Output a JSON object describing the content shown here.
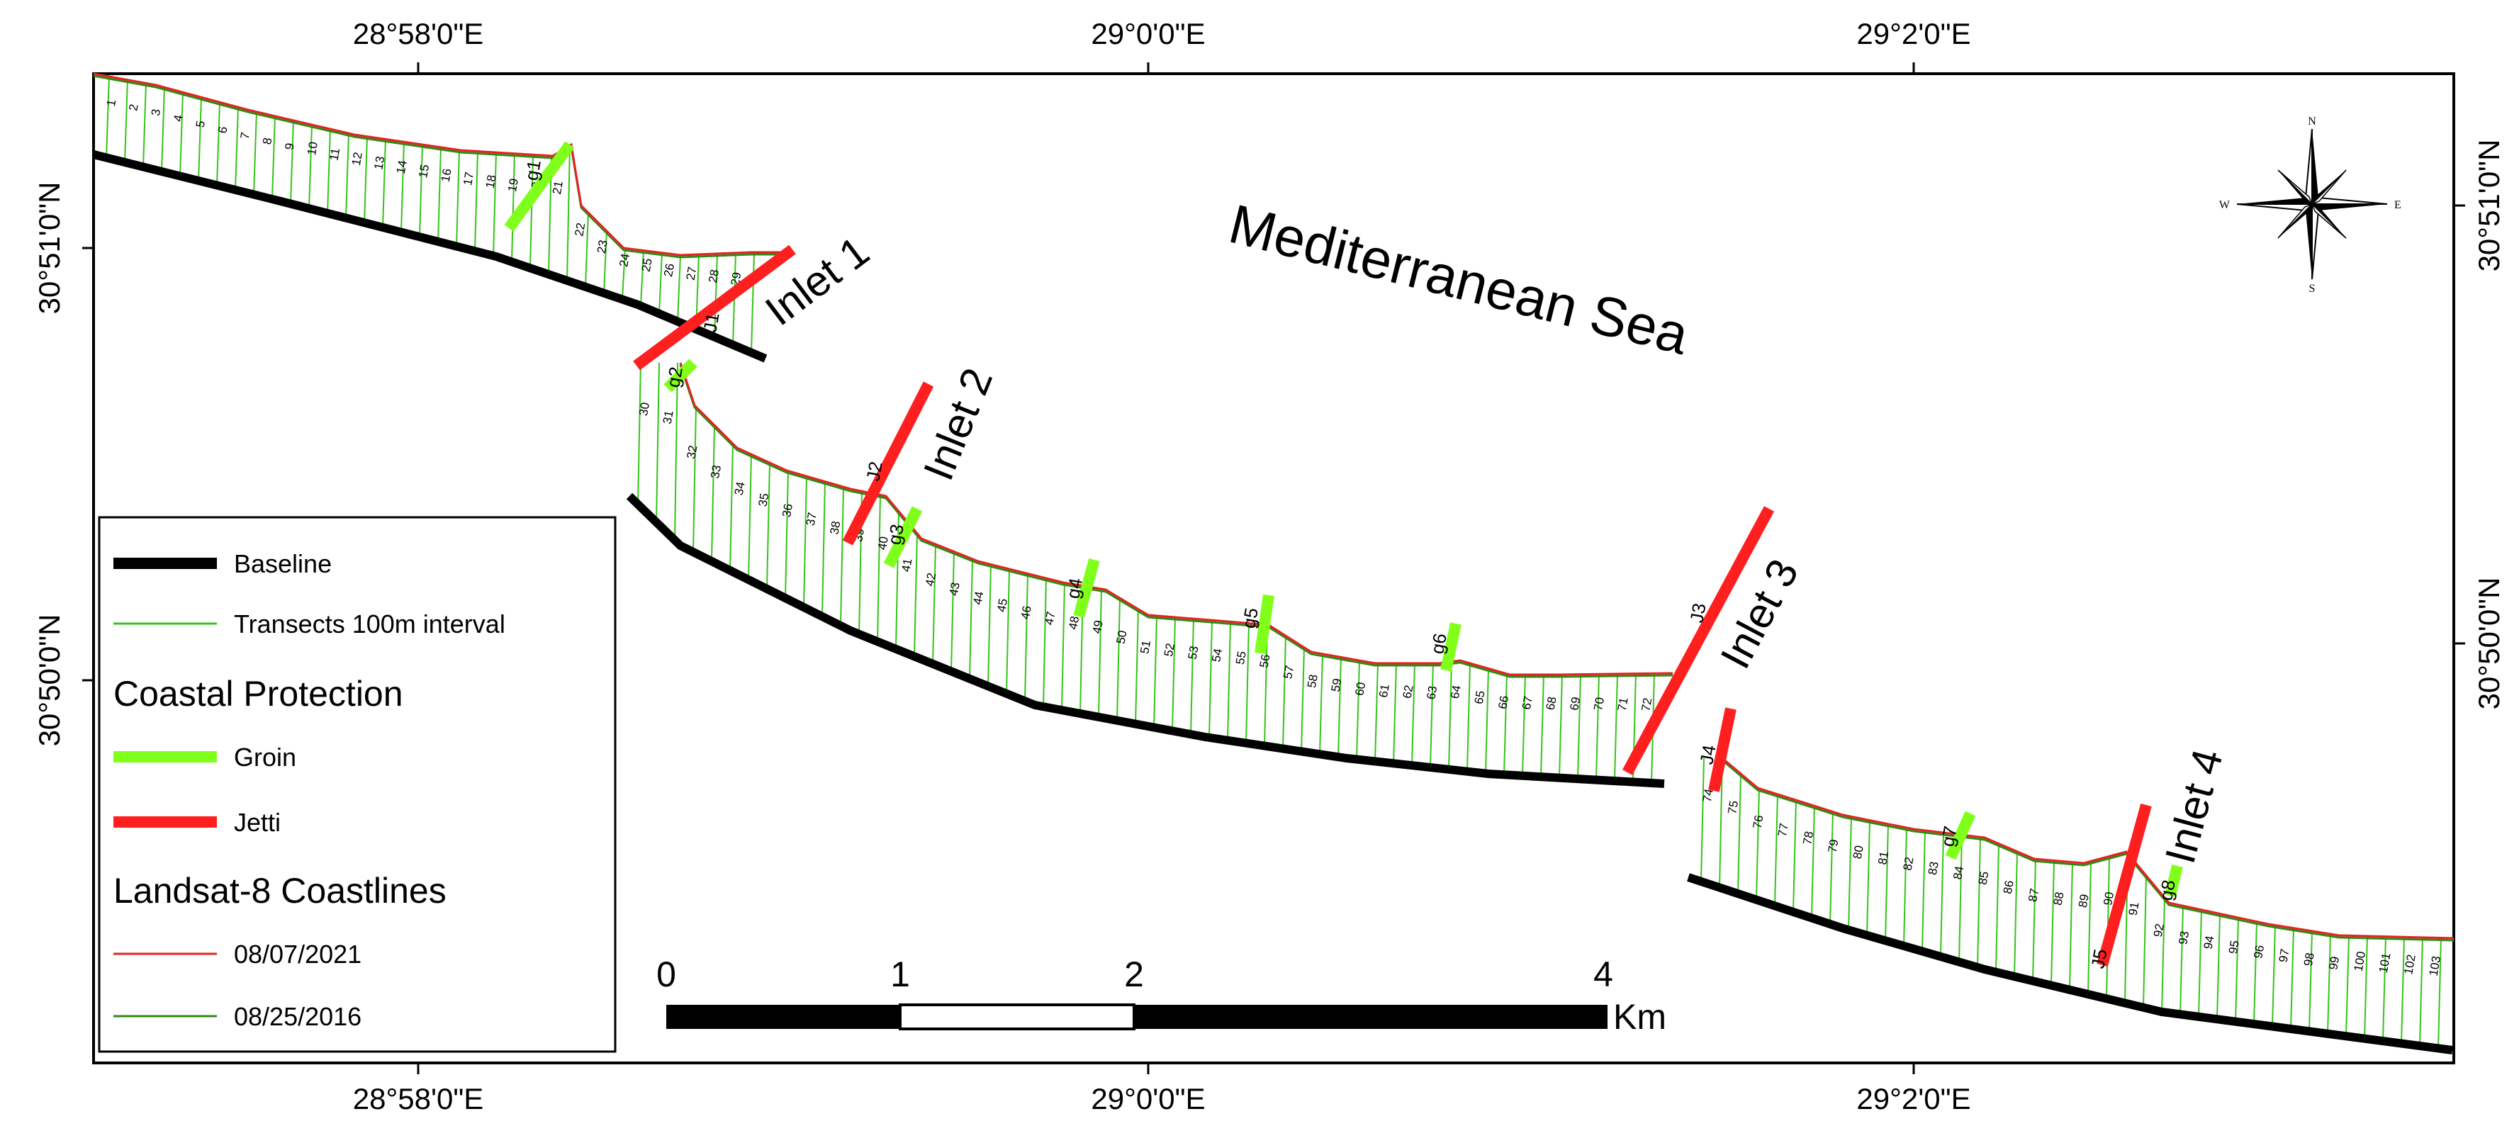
{
  "axes": {
    "top_ticks": [
      "28°58'0\"E",
      "29°0'0\"E",
      "29°2'0\"E"
    ],
    "bottom_ticks": [
      "28°58'0\"E",
      "29°0'0\"E",
      "29°2'0\"E"
    ],
    "left_ticks": [
      "30°51'0\"N",
      "30°50'0\"N"
    ],
    "right_ticks": [
      "30°51'0\"N",
      "30°50'0\"N"
    ]
  },
  "labels": {
    "sea": "Mediterranean Sea",
    "inlets": [
      "Inlet 1",
      "Inlet 2",
      "Inlet 3",
      "Inlet 4"
    ],
    "groins": [
      "g1",
      "g2",
      "g3",
      "g4",
      "g5",
      "g6",
      "g7",
      "g8"
    ],
    "jetties": [
      "J1",
      "J2",
      "J3",
      "J4",
      "J5"
    ]
  },
  "transects": {
    "first": 1,
    "last": 103,
    "interval": "Transects 100m interval"
  },
  "legend": {
    "items": [
      {
        "label": "Baseline",
        "color": "#000000",
        "style": "thick"
      },
      {
        "label": "Transects 100m interval",
        "color": "#34c418",
        "style": "thin"
      }
    ],
    "protection_title": "Coastal Protection",
    "protection_items": [
      {
        "label": "Groin",
        "color": "#80ff1a"
      },
      {
        "label": "Jetti",
        "color": "#ff1f1f"
      }
    ],
    "coastlines_title": "Landsat-8 Coastlines",
    "coastline_items": [
      {
        "label": "08/07/2021",
        "color": "#e52222"
      },
      {
        "label": "08/25/2016",
        "color": "#2f8a14"
      }
    ]
  },
  "scale_bar": {
    "ticks": [
      "0",
      "1",
      "2",
      "4"
    ],
    "unit": "Km"
  },
  "compass": {
    "n": "N",
    "s": "S",
    "e": "E",
    "w": "W"
  },
  "colors": {
    "baseline": "#000000",
    "transect": "#34c418",
    "groin": "#80ff1a",
    "jetty": "#ff1f1f",
    "coast2021": "#e52222",
    "coast2016": "#2f8a14"
  }
}
